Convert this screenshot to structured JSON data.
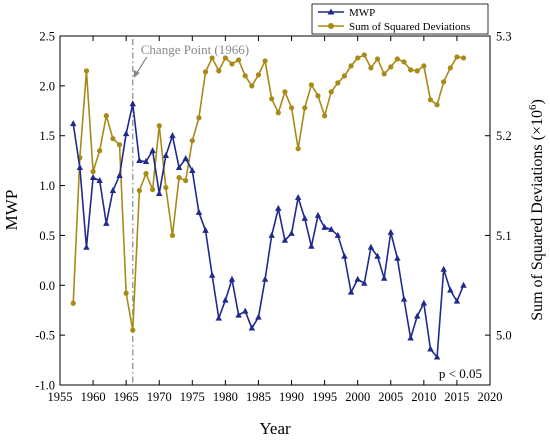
{
  "chart_data": {
    "type": "line",
    "x": [
      1957,
      1958,
      1959,
      1960,
      1961,
      1962,
      1963,
      1964,
      1965,
      1966,
      1967,
      1968,
      1969,
      1970,
      1971,
      1972,
      1973,
      1974,
      1975,
      1976,
      1977,
      1978,
      1979,
      1980,
      1981,
      1982,
      1983,
      1984,
      1985,
      1986,
      1987,
      1988,
      1989,
      1990,
      1991,
      1992,
      1993,
      1994,
      1995,
      1996,
      1997,
      1998,
      1999,
      2000,
      2001,
      2002,
      2003,
      2004,
      2005,
      2006,
      2007,
      2008,
      2009,
      2010,
      2011,
      2012,
      2013,
      2014,
      2015,
      2016
    ],
    "series": [
      {
        "name": "MWP",
        "axis": "left",
        "color": "#1f2a8c",
        "marker": "triangle",
        "values": [
          1.62,
          1.18,
          0.38,
          1.08,
          1.05,
          0.62,
          0.95,
          1.1,
          1.52,
          1.82,
          1.25,
          1.24,
          1.35,
          0.92,
          1.3,
          1.5,
          1.18,
          1.27,
          1.15,
          0.73,
          0.55,
          0.1,
          -0.33,
          -0.15,
          0.06,
          -0.3,
          -0.26,
          -0.43,
          -0.32,
          0.06,
          0.5,
          0.77,
          0.45,
          0.52,
          0.88,
          0.67,
          0.39,
          0.7,
          0.58,
          0.56,
          0.5,
          0.29,
          -0.07,
          0.06,
          0.02,
          0.38,
          0.29,
          0.07,
          0.53,
          0.27,
          -0.14,
          -0.53,
          -0.31,
          -0.18,
          -0.64,
          -0.72,
          0.16,
          -0.05,
          -0.16,
          0.0
        ]
      },
      {
        "name": "Sum of Squared Deviations",
        "axis": "right",
        "color": "#a88a16",
        "marker": "circle",
        "values": [
          5.032,
          5.178,
          5.265,
          5.164,
          5.185,
          5.22,
          5.197,
          5.191,
          5.042,
          5.005,
          5.145,
          5.162,
          5.146,
          5.21,
          5.148,
          5.1,
          5.158,
          5.155,
          5.195,
          5.218,
          5.264,
          5.278,
          5.265,
          5.278,
          5.272,
          5.276,
          5.26,
          5.25,
          5.261,
          5.275,
          5.237,
          5.223,
          5.244,
          5.228,
          5.187,
          5.228,
          5.251,
          5.24,
          5.22,
          5.244,
          5.253,
          5.26,
          5.27,
          5.278,
          5.281,
          5.268,
          5.277,
          5.262,
          5.269,
          5.277,
          5.274,
          5.266,
          5.265,
          5.27,
          5.236,
          5.231,
          5.254,
          5.268,
          5.279,
          5.278
        ]
      }
    ],
    "xlabel": "Year",
    "ylabel": "MWP",
    "ylabel_right": "Sum of Squared Deviations (×10⁶)",
    "xticks": [
      1955,
      1960,
      1965,
      1970,
      1975,
      1980,
      1985,
      1990,
      1995,
      2000,
      2005,
      2010,
      2015,
      2020
    ],
    "yticks_left": [
      -1.0,
      -0.5,
      0.0,
      0.5,
      1.0,
      1.5,
      2.0,
      2.5
    ],
    "yticks_right": [
      5.0,
      5.1,
      5.2,
      5.3
    ],
    "xlim": [
      1955,
      2020
    ],
    "ylim": [
      -1.0,
      2.5
    ],
    "ylim_right": [
      4.95,
      5.3
    ],
    "grid": false,
    "legend": "top-right",
    "annotations": {
      "change_point": {
        "text": "Change Point (1966)",
        "x": 1966
      },
      "significance": "p < 0.05"
    }
  }
}
